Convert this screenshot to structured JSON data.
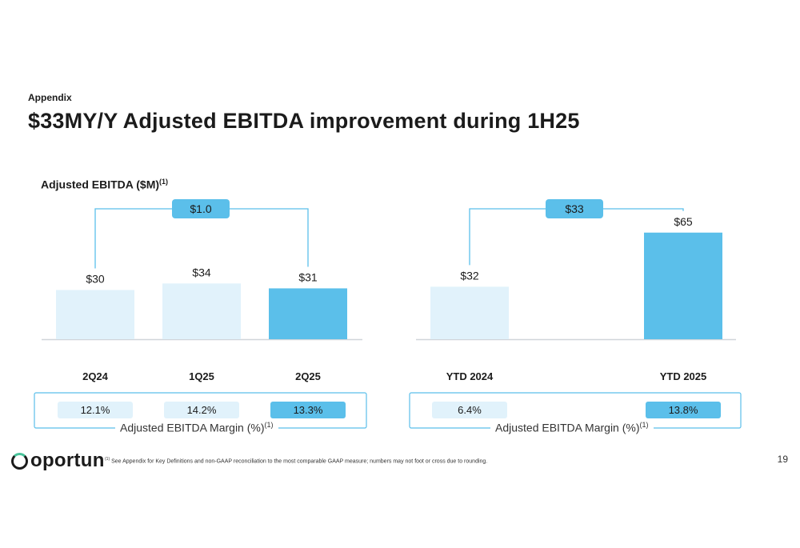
{
  "header": {
    "section": "Appendix",
    "title": "$33MY/Y Adjusted EBITDA improvement during 1H25"
  },
  "chart_title": {
    "text": "Adjusted EBITDA ($M)",
    "sup": "(1)"
  },
  "chart_data": [
    {
      "type": "bar",
      "categories": [
        "2Q24",
        "1Q25",
        "2Q25"
      ],
      "values": [
        30,
        34,
        31
      ],
      "value_labels": [
        "$30",
        "$34",
        "$31"
      ],
      "ylim": [
        0,
        65
      ],
      "bar_colors": [
        "#e1f2fb",
        "#e1f2fb",
        "#5bbfea"
      ],
      "change_label": "$1.0",
      "margin": {
        "label": "Adjusted EBITDA Margin (%)",
        "sup": "(1)",
        "values": [
          "12.1%",
          "14.2%",
          "13.3%"
        ],
        "box_colors": [
          "#e1f2fb",
          "#e1f2fb",
          "#5bbfea"
        ]
      }
    },
    {
      "type": "bar",
      "categories": [
        "YTD 2024",
        "YTD 2025"
      ],
      "values": [
        32,
        65
      ],
      "value_labels": [
        "$32",
        "$65"
      ],
      "ylim": [
        0,
        65
      ],
      "bar_colors": [
        "#e1f2fb",
        "#5bbfea"
      ],
      "change_label": "$33",
      "margin": {
        "label": "Adjusted EBITDA Margin (%)",
        "sup": "(1)",
        "values": [
          "6.4%",
          "13.8%"
        ],
        "box_colors": [
          "#e1f2fb",
          "#5bbfea"
        ]
      }
    }
  ],
  "footer": {
    "logo": "oportun",
    "footnote_sup": "(1)",
    "footnote": "See Appendix for Key Definitions and non-GAAP reconciliation to the most comparable GAAP measure; numbers may not foot or cross due to rounding.",
    "page_number": "19"
  },
  "colors": {
    "accent": "#5bbfea",
    "light": "#e1f2fb",
    "connector": "#5bbfea",
    "baseline": "#d0d5da"
  }
}
